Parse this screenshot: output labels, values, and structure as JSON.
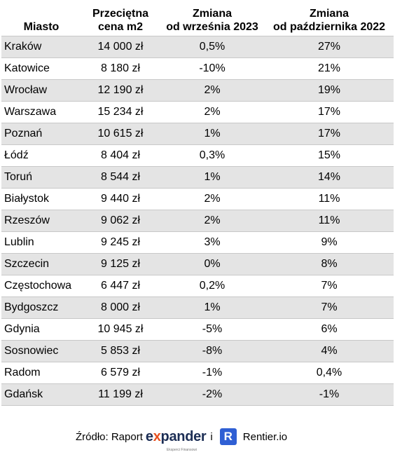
{
  "table": {
    "headers": [
      {
        "line1": "",
        "line2": "Miasto"
      },
      {
        "line1": "Przeciętna",
        "line2": "cena m2"
      },
      {
        "line1": "Zmiana",
        "line2": "od września 2023"
      },
      {
        "line1": "Zmiana",
        "line2": "od października 2022"
      }
    ],
    "rows": [
      {
        "city": "Kraków",
        "price": "14 000 zł",
        "change_sep": "0,5%",
        "change_oct": "27%"
      },
      {
        "city": "Katowice",
        "price": "8 180 zł",
        "change_sep": "-10%",
        "change_oct": "21%"
      },
      {
        "city": "Wrocław",
        "price": "12 190 zł",
        "change_sep": "2%",
        "change_oct": "19%"
      },
      {
        "city": "Warszawa",
        "price": "15 234 zł",
        "change_sep": "2%",
        "change_oct": "17%"
      },
      {
        "city": "Poznań",
        "price": "10 615 zł",
        "change_sep": "1%",
        "change_oct": "17%"
      },
      {
        "city": "Łódź",
        "price": "8 404 zł",
        "change_sep": "0,3%",
        "change_oct": "15%"
      },
      {
        "city": "Toruń",
        "price": "8 544 zł",
        "change_sep": "1%",
        "change_oct": "14%"
      },
      {
        "city": "Białystok",
        "price": "9 440 zł",
        "change_sep": "2%",
        "change_oct": "11%"
      },
      {
        "city": "Rzeszów",
        "price": "9 062 zł",
        "change_sep": "2%",
        "change_oct": "11%"
      },
      {
        "city": "Lublin",
        "price": "9 245 zł",
        "change_sep": "3%",
        "change_oct": "9%"
      },
      {
        "city": "Szczecin",
        "price": "9 125 zł",
        "change_sep": "0%",
        "change_oct": "8%"
      },
      {
        "city": "Częstochowa",
        "price": "6 447 zł",
        "change_sep": "0,2%",
        "change_oct": "7%"
      },
      {
        "city": "Bydgoszcz",
        "price": "8 000 zł",
        "change_sep": "1%",
        "change_oct": "7%"
      },
      {
        "city": "Gdynia",
        "price": "10 945 zł",
        "change_sep": "-5%",
        "change_oct": "6%"
      },
      {
        "city": "Sosnowiec",
        "price": "5 853 zł",
        "change_sep": "-8%",
        "change_oct": "4%"
      },
      {
        "city": "Radom",
        "price": "6 579 zł",
        "change_sep": "-1%",
        "change_oct": "0,4%"
      },
      {
        "city": "Gdańsk",
        "price": "11 199 zł",
        "change_sep": "-2%",
        "change_oct": "-1%"
      }
    ],
    "row_shade_color": "#e4e4e4"
  },
  "source": {
    "label": "Źródło: Raport",
    "expander_logo": {
      "pre": "e",
      "x": "x",
      "post": "pander",
      "tagline": "Eksperci Finansowi"
    },
    "conjunction": "i",
    "rentier_badge": "R",
    "rentier_text": "Rentier.io"
  }
}
